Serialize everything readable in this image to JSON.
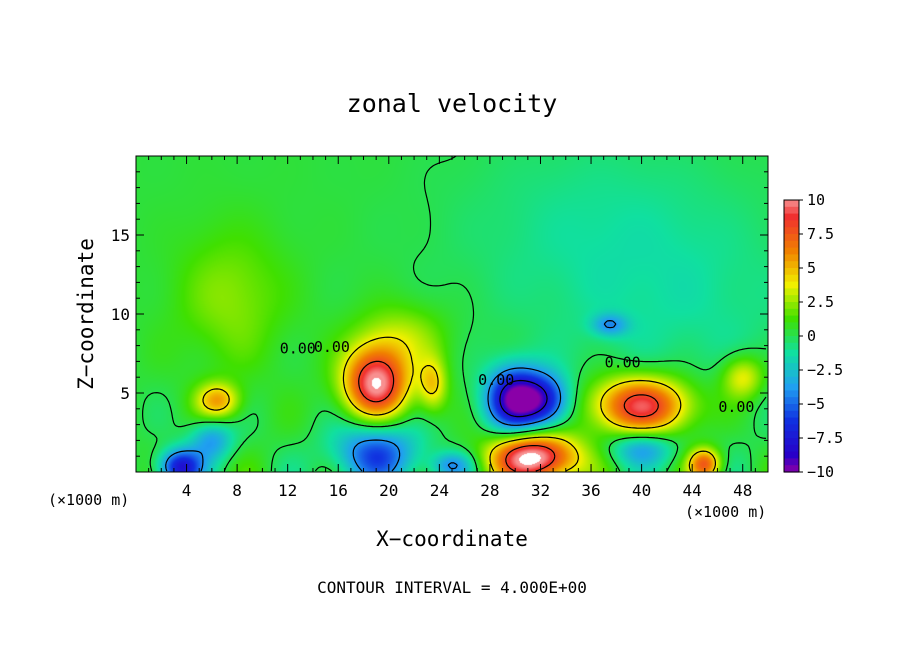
{
  "chart_data": {
    "type": "heatmap",
    "title": "zonal velocity",
    "xlabel": "X−coordinate",
    "ylabel": "Z−coordinate",
    "x_unit_left": "(×1000 m)",
    "x_unit_right": "(×1000 m)",
    "footer": "CONTOUR INTERVAL = 4.000E+00",
    "xlim": [
      0,
      50
    ],
    "ylim": [
      0,
      20
    ],
    "x_ticks": [
      4,
      8,
      12,
      16,
      20,
      24,
      28,
      32,
      36,
      40,
      44,
      48
    ],
    "y_ticks": [
      5,
      10,
      15
    ],
    "x_tick_labels": [
      "4",
      "8",
      "12",
      "16",
      "20",
      "24",
      "28",
      "32",
      "36",
      "40",
      "44",
      "48"
    ],
    "y_tick_labels": [
      "5",
      "10",
      "15"
    ],
    "colorbar": {
      "min": -10,
      "max": 10,
      "tick_values": [
        10,
        7.5,
        5,
        2.5,
        0,
        -2.5,
        -5,
        -7.5,
        -10
      ],
      "tick_labels": [
        "10",
        "7.5",
        "5",
        "2.5",
        "0",
        "−2.5",
        "−5",
        "−7.5",
        "−10"
      ],
      "colors": [
        {
          "value": -10,
          "color": "#8a00a8"
        },
        {
          "value": -8.75,
          "color": "#2800c8"
        },
        {
          "value": -6.25,
          "color": "#1030e0"
        },
        {
          "value": -3.75,
          "color": "#20a0f0"
        },
        {
          "value": -1.25,
          "color": "#10e0a0"
        },
        {
          "value": 1.25,
          "color": "#40e000"
        },
        {
          "value": 3.75,
          "color": "#f0f000"
        },
        {
          "value": 6.25,
          "color": "#f08000"
        },
        {
          "value": 8.75,
          "color": "#f03030"
        },
        {
          "value": 10,
          "color": "#f89090"
        }
      ]
    },
    "contour_labels": [
      {
        "text": "0.00",
        "x": 12.8,
        "z": 7.5
      },
      {
        "text": "0.00",
        "x": 15.5,
        "z": 7.6
      },
      {
        "text": "0.00",
        "x": 28.5,
        "z": 5.5
      },
      {
        "text": "0.00",
        "x": 38.5,
        "z": 6.6
      },
      {
        "text": "0.00",
        "x": 47.5,
        "z": 3.8
      }
    ],
    "features": [
      {
        "x": 19,
        "z": 5.6,
        "sx": 1.8,
        "sz": 1.6,
        "value": 10
      },
      {
        "x": 40,
        "z": 4.2,
        "sx": 2.8,
        "sz": 1.3,
        "value": 9
      },
      {
        "x": 31.5,
        "z": 0.9,
        "sx": 2.4,
        "sz": 1.1,
        "value": 11
      },
      {
        "x": 45,
        "z": 0.5,
        "sx": 0.9,
        "sz": 0.7,
        "value": 7
      },
      {
        "x": 30,
        "z": 4.6,
        "sx": 1.6,
        "sz": 1.4,
        "value": -10
      },
      {
        "x": 32.5,
        "z": 4.5,
        "sx": 1.4,
        "sz": 1.2,
        "value": -6
      },
      {
        "x": 19,
        "z": 1.2,
        "sx": 2.4,
        "sz": 1.4,
        "value": -6
      },
      {
        "x": 3.5,
        "z": 0.3,
        "sx": 1.2,
        "sz": 0.8,
        "value": -8
      },
      {
        "x": 6,
        "z": 2,
        "sx": 1.2,
        "sz": 0.9,
        "value": -4
      },
      {
        "x": 40,
        "z": 1.5,
        "sx": 1.8,
        "sz": 0.8,
        "value": -4
      },
      {
        "x": 37.5,
        "z": 9.3,
        "sx": 1,
        "sz": 0.5,
        "value": -3.5
      },
      {
        "x": 25,
        "z": 0.4,
        "sx": 1.2,
        "sz": 0.6,
        "value": -4
      },
      {
        "x": 6.5,
        "z": 4.5,
        "sx": 1.2,
        "sz": 0.8,
        "value": 5
      },
      {
        "x": 23.5,
        "z": 5.5,
        "sx": 0.8,
        "sz": 1.2,
        "value": 4
      },
      {
        "x": 48,
        "z": 6,
        "sx": 1.2,
        "sz": 1,
        "value": 4
      },
      {
        "x": 7.5,
        "z": 11,
        "sx": 3,
        "sz": 3,
        "value": 2
      },
      {
        "x": 21,
        "z": 8.5,
        "sx": 2.5,
        "sz": 1.5,
        "value": 2.5
      },
      {
        "x": 36,
        "z": 15,
        "sx": 8,
        "sz": 5,
        "value": -1.3
      },
      {
        "x": 45,
        "z": 10,
        "sx": 7,
        "sz": 5,
        "value": -1
      }
    ]
  }
}
